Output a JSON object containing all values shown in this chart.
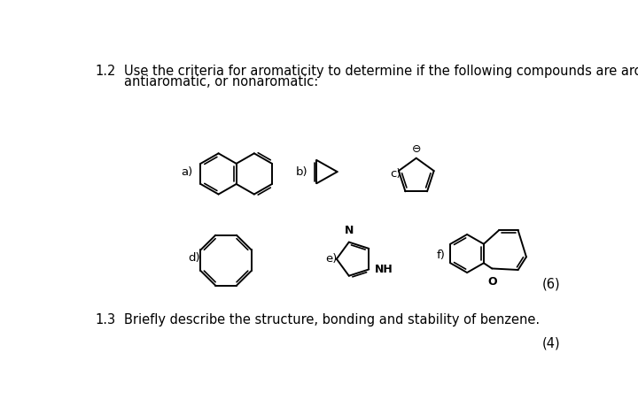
{
  "background_color": "#ffffff",
  "q12_number": "1.2",
  "q12_text_line1": "Use the criteria for aromaticity to determine if the following compounds are aromatic,",
  "q12_text_line2": "antiaromatic, or nonaromatic:",
  "q13_number": "1.3",
  "q13_text": "Briefly describe the structure, bonding and stability of benzene.",
  "mark_12": "(6)",
  "mark_13": "(4)",
  "text_color": "#000000",
  "line_color": "#000000",
  "font_size_body": 10.5,
  "font_size_label": 9.5,
  "font_size_mark": 10.5,
  "font_size_atom": 9
}
